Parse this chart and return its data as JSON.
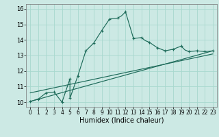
{
  "xlabel": "Humidex (Indice chaleur)",
  "xlim": [
    -0.5,
    23.5
  ],
  "ylim": [
    9.7,
    16.3
  ],
  "xticks": [
    0,
    1,
    2,
    3,
    4,
    5,
    6,
    7,
    8,
    9,
    10,
    11,
    12,
    13,
    14,
    15,
    16,
    17,
    18,
    19,
    20,
    21,
    22,
    23
  ],
  "yticks": [
    10,
    11,
    12,
    13,
    14,
    15,
    16
  ],
  "bg_color": "#cce9e4",
  "line_color": "#1e6b5a",
  "grid_color": "#a8d8ce",
  "main_x": [
    0,
    1,
    2,
    3,
    4,
    4,
    5,
    5,
    6,
    7,
    8,
    9,
    10,
    11,
    11.5,
    12,
    13,
    13.5,
    14,
    14.5,
    15,
    16,
    17,
    18,
    19,
    19.5,
    20,
    21,
    22,
    23
  ],
  "main_y": [
    10.05,
    10.2,
    10.6,
    10.65,
    10.0,
    10.0,
    11.5,
    10.25,
    11.7,
    13.3,
    13.8,
    14.6,
    15.35,
    15.4,
    15.55,
    15.8,
    14.1,
    14.12,
    14.15,
    13.95,
    13.85,
    13.5,
    13.3,
    13.4,
    13.6,
    13.35,
    13.25,
    13.3,
    13.25,
    13.3
  ],
  "marker_x": [
    0,
    1,
    2,
    3,
    4,
    5,
    5,
    6,
    7,
    8,
    9,
    10,
    11,
    12,
    13,
    14,
    15,
    16,
    17,
    18,
    19,
    20,
    21,
    22,
    23
  ],
  "marker_y": [
    10.05,
    10.2,
    10.6,
    10.65,
    10.0,
    11.5,
    10.25,
    11.7,
    13.3,
    13.8,
    14.6,
    15.35,
    15.4,
    15.8,
    14.1,
    14.15,
    13.85,
    13.5,
    13.3,
    13.4,
    13.6,
    13.25,
    13.3,
    13.25,
    13.3
  ],
  "trend1_x": [
    0,
    23
  ],
  "trend1_y": [
    10.05,
    13.3
  ],
  "trend2_x": [
    0,
    23
  ],
  "trend2_y": [
    10.6,
    13.1
  ],
  "xlabel_fontsize": 7,
  "tick_fontsize": 5.5,
  "ytick_fontsize": 6.0
}
